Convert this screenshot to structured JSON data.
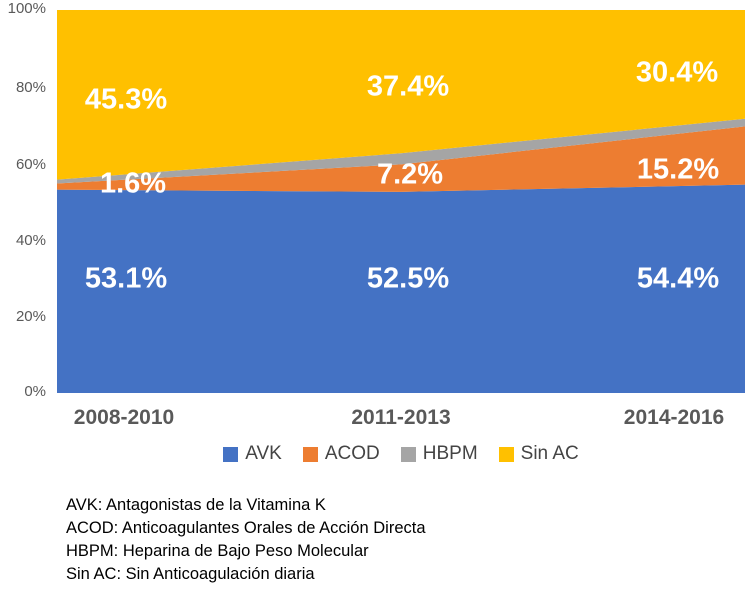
{
  "chart_data": {
    "type": "area",
    "stacking": "percent",
    "title": "",
    "xlabel": "",
    "ylabel": "",
    "grid": false,
    "legend_position": "bottom",
    "ylim": [
      0,
      100
    ],
    "y_ticks_top_to_bottom": [
      "100%",
      "80%",
      "60%",
      "40%",
      "20%",
      "0%"
    ],
    "categories": [
      "2008-2010",
      "2011-2013",
      "2014-2016"
    ],
    "series": [
      {
        "name": "AVK",
        "color": "#4472C4",
        "values": [
          53.1,
          52.5,
          54.4
        ],
        "labels": [
          "53.1%",
          "52.5%",
          "54.4%"
        ]
      },
      {
        "name": "ACOD",
        "color": "#ED7D31",
        "values": [
          1.6,
          7.2,
          15.2
        ],
        "labels": [
          "1.6%",
          "7.2%",
          "15.2%"
        ]
      },
      {
        "name": "HBPM",
        "color": "#A5A5A5",
        "values": [
          1.0,
          2.9,
          2.0
        ],
        "labels": [
          "",
          "",
          ""
        ]
      },
      {
        "name": "Sin AC",
        "color": "#FFC000",
        "values": [
          45.3,
          37.4,
          30.4
        ],
        "labels": [
          "45.3%",
          "37.4%",
          "30.4%"
        ]
      }
    ]
  },
  "footnotes": {
    "lines": [
      "AVK: Antagonistas de la Vitamina K",
      "ACOD: Anticoagulantes Orales de Acción Directa",
      "HBPM: Heparina de Bajo Peso Molecular",
      "Sin AC: Sin Anticoagulación diaria"
    ]
  },
  "colors": {
    "axis_text": "#595959",
    "data_label_text": "#FFFFFF",
    "legend_text": "#444444",
    "footnote_text": "#000000",
    "background": "#FFFFFF"
  }
}
